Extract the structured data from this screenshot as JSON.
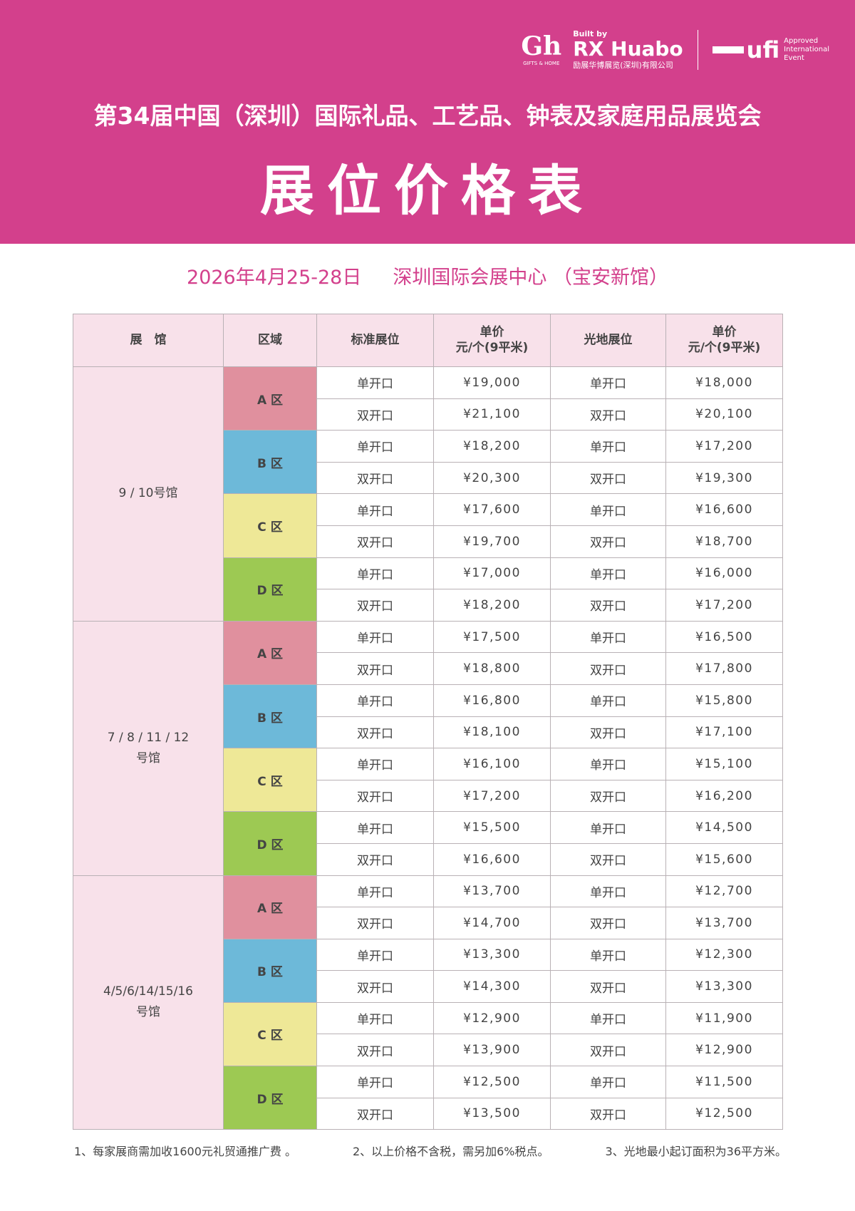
{
  "header": {
    "logo_gh": "Gh",
    "logo_gh_sub": "GIFTS & HOME",
    "built_by": "Built by",
    "rx_name": "RX Huabo",
    "rx_cn": "励展华博展览(深圳)有限公司",
    "ufi": "ufi",
    "ufi_note": [
      "Approved",
      "International",
      "Event"
    ],
    "title": "第34届中国（深圳）国际礼品、工艺品、钟表及家庭用品展览会",
    "subtitle": "展位价格表",
    "date": "2026年4月25-28日",
    "venue": "深圳国际会展中心 （宝安新馆）",
    "color": "#d3408c"
  },
  "table": {
    "headers": [
      "展　馆",
      "区域",
      "标准展位",
      "单价\n元/个(9平米)",
      "光地展位",
      "单价\n元/个(9平米)"
    ],
    "zone_colors": {
      "A": "#e0909e",
      "B": "#6db9d9",
      "C": "#eee897",
      "D": "#9dc953"
    },
    "halls": [
      {
        "name": "9 / 10号馆",
        "zones": [
          {
            "key": "A",
            "label": "A 区",
            "rows": [
              [
                "单开口",
                "¥19,000",
                "单开口",
                "¥18,000"
              ],
              [
                "双开口",
                "¥21,100",
                "双开口",
                "¥20,100"
              ]
            ]
          },
          {
            "key": "B",
            "label": "B 区",
            "rows": [
              [
                "单开口",
                "¥18,200",
                "单开口",
                "¥17,200"
              ],
              [
                "双开口",
                "¥20,300",
                "双开口",
                "¥19,300"
              ]
            ]
          },
          {
            "key": "C",
            "label": "C 区",
            "rows": [
              [
                "单开口",
                "¥17,600",
                "单开口",
                "¥16,600"
              ],
              [
                "双开口",
                "¥19,700",
                "双开口",
                "¥18,700"
              ]
            ]
          },
          {
            "key": "D",
            "label": "D 区",
            "rows": [
              [
                "单开口",
                "¥17,000",
                "单开口",
                "¥16,000"
              ],
              [
                "双开口",
                "¥18,200",
                "双开口",
                "¥17,200"
              ]
            ]
          }
        ]
      },
      {
        "name": "7 / 8 / 11 / 12\n号馆",
        "zones": [
          {
            "key": "A",
            "label": "A 区",
            "rows": [
              [
                "单开口",
                "¥17,500",
                "单开口",
                "¥16,500"
              ],
              [
                "双开口",
                "¥18,800",
                "双开口",
                "¥17,800"
              ]
            ]
          },
          {
            "key": "B",
            "label": "B 区",
            "rows": [
              [
                "单开口",
                "¥16,800",
                "单开口",
                "¥15,800"
              ],
              [
                "双开口",
                "¥18,100",
                "双开口",
                "¥17,100"
              ]
            ]
          },
          {
            "key": "C",
            "label": "C 区",
            "rows": [
              [
                "单开口",
                "¥16,100",
                "单开口",
                "¥15,100"
              ],
              [
                "双开口",
                "¥17,200",
                "双开口",
                "¥16,200"
              ]
            ]
          },
          {
            "key": "D",
            "label": "D 区",
            "rows": [
              [
                "单开口",
                "¥15,500",
                "单开口",
                "¥14,500"
              ],
              [
                "双开口",
                "¥16,600",
                "双开口",
                "¥15,600"
              ]
            ]
          }
        ]
      },
      {
        "name": "4/5/6/14/15/16\n号馆",
        "zones": [
          {
            "key": "A",
            "label": "A 区",
            "rows": [
              [
                "单开口",
                "¥13,700",
                "单开口",
                "¥12,700"
              ],
              [
                "双开口",
                "¥14,700",
                "双开口",
                "¥13,700"
              ]
            ]
          },
          {
            "key": "B",
            "label": "B 区",
            "rows": [
              [
                "单开口",
                "¥13,300",
                "单开口",
                "¥12,300"
              ],
              [
                "双开口",
                "¥14,300",
                "双开口",
                "¥13,300"
              ]
            ]
          },
          {
            "key": "C",
            "label": "C 区",
            "rows": [
              [
                "单开口",
                "¥12,900",
                "单开口",
                "¥11,900"
              ],
              [
                "双开口",
                "¥13,900",
                "双开口",
                "¥12,900"
              ]
            ]
          },
          {
            "key": "D",
            "label": "D 区",
            "rows": [
              [
                "单开口",
                "¥12,500",
                "单开口",
                "¥11,500"
              ],
              [
                "双开口",
                "¥13,500",
                "双开口",
                "¥12,500"
              ]
            ]
          }
        ]
      }
    ]
  },
  "notes": [
    "1、每家展商需加收1600元礼贸通推广费 。",
    "2、以上价格不含税，需另加6%税点。",
    "3、光地最小起订面积为36平方米。"
  ]
}
